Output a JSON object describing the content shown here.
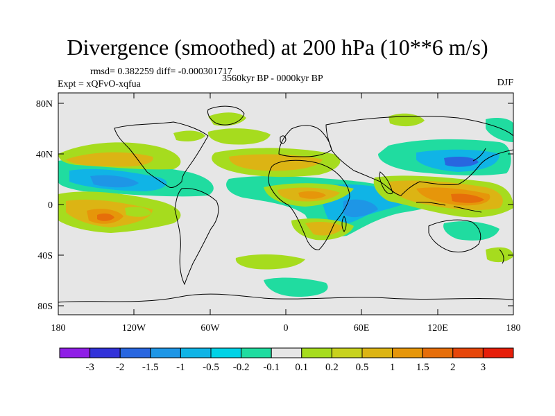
{
  "title": "Divergence (smoothed) at 200 hPa (10**6 m/s)",
  "stats_line": "rmsd= 0.382259 diff= -0.000301717",
  "period_line": "3560kyr BP - 0000kyr BP",
  "experiment_line": "Expt = xQFvO-xqfua",
  "season": "DJF",
  "colors": {
    "background": "#e6e6e6",
    "coast": "#000000"
  },
  "lat_ticks": [
    "80N",
    "40N",
    "0",
    "40S",
    "80S"
  ],
  "lon_ticks": [
    "180",
    "120W",
    "60W",
    "0",
    "60E",
    "120E",
    "180"
  ],
  "colorbar": {
    "colors": [
      "#8f1ee6",
      "#3232d9",
      "#2866e0",
      "#1e96e6",
      "#10b4e6",
      "#00d2e6",
      "#20dca0",
      "#e6e6e6",
      "#a6dc1e",
      "#c8d21e",
      "#dcb414",
      "#e6960a",
      "#e66e0a",
      "#e6460a",
      "#e61e0a"
    ],
    "labels": [
      "-3",
      "-2",
      "-1.5",
      "-1",
      "-0.5",
      "-0.2",
      "-0.1",
      "0.1",
      "0.2",
      "0.5",
      "1",
      "1.5",
      "2",
      "3"
    ]
  }
}
